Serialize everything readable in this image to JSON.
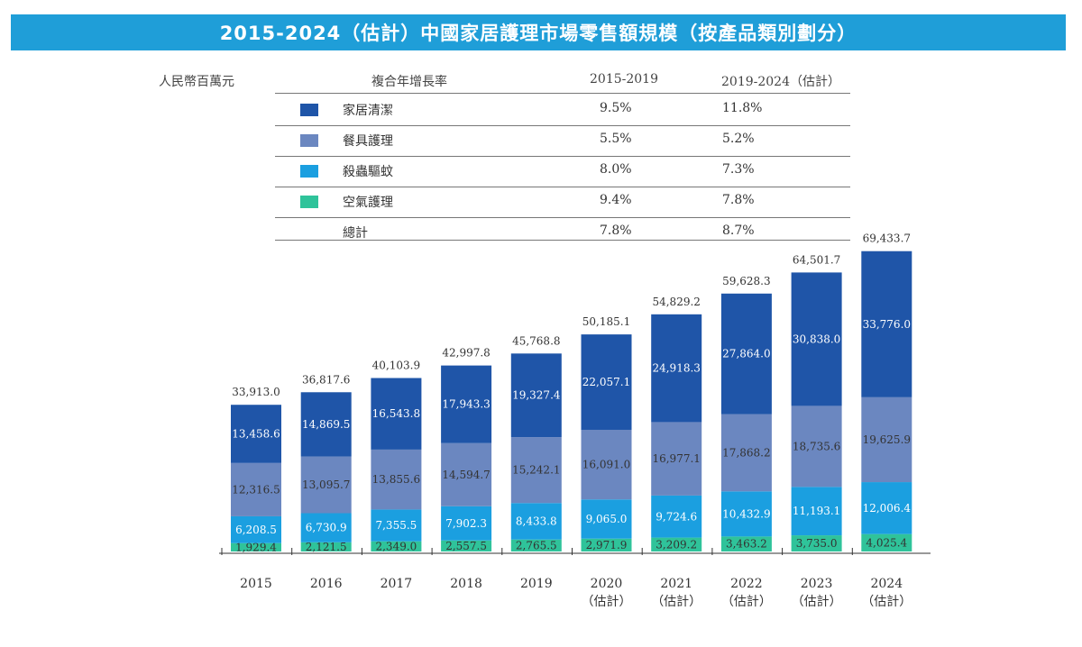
{
  "title": "2015-2024（估計）中國家居護理市場零售額規模（按產品類別劃分）",
  "unit": "人民幣百萬元",
  "cagr_table": {
    "header": [
      "複合年增長率",
      "2015-2019",
      "2019-2024（估計）"
    ],
    "rows": [
      {
        "label": "家居清潔",
        "v1": "9.5%",
        "v2": "11.8%",
        "color": "#1f55a8"
      },
      {
        "label": "餐具護理",
        "v1": "5.5%",
        "v2": "5.2%",
        "color": "#6b87c0"
      },
      {
        "label": "殺蟲驅蚊",
        "v1": "8.0%",
        "v2": "7.3%",
        "color": "#1b9fe0"
      },
      {
        "label": "空氣護理",
        "v1": "9.4%",
        "v2": "7.8%",
        "color": "#2fc39a"
      }
    ],
    "total": {
      "label": "總計",
      "v1": "7.8%",
      "v2": "8.7%"
    }
  },
  "chart_data": {
    "type": "bar",
    "stacked": true,
    "categories": [
      "2015",
      "2016",
      "2017",
      "2018",
      "2019",
      "2020",
      "2021",
      "2022",
      "2023",
      "2024"
    ],
    "category_sublabels": [
      "",
      "",
      "",
      "",
      "",
      "（估計）",
      "（估計）",
      "（估計）",
      "（估計）",
      "（估計）"
    ],
    "series": [
      {
        "name": "空氣護理",
        "color": "#2fc39a",
        "values": [
          1929.4,
          2121.5,
          2349.0,
          2557.5,
          2765.5,
          2971.9,
          3209.2,
          3463.2,
          3735.0,
          4025.4
        ],
        "labels": [
          "1,929.4",
          "2,121.5",
          "2,349.0",
          "2,557.5",
          "2,765.5",
          "2,971.9",
          "3,209.2",
          "3,463.2",
          "3,735.0",
          "4,025.4"
        ]
      },
      {
        "name": "殺蟲驅蚊",
        "color": "#1b9fe0",
        "values": [
          6208.5,
          6730.9,
          7355.5,
          7902.3,
          8433.8,
          9065.0,
          9724.6,
          10432.9,
          11193.1,
          12006.4
        ],
        "labels": [
          "6,208.5",
          "6,730.9",
          "7,355.5",
          "7,902.3",
          "8,433.8",
          "9,065.0",
          "9,724.6",
          "10,432.9",
          "11,193.1",
          "12,006.4"
        ]
      },
      {
        "name": "餐具護理",
        "color": "#6b87c0",
        "values": [
          12316.5,
          13095.7,
          13855.6,
          14594.7,
          15242.1,
          16091.0,
          16977.1,
          17868.2,
          18735.6,
          19625.9
        ],
        "labels": [
          "12,316.5",
          "13,095.7",
          "13,855.6",
          "14,594.7",
          "15,242.1",
          "16,091.0",
          "16,977.1",
          "17,868.2",
          "18,735.6",
          "19,625.9"
        ]
      },
      {
        "name": "家居清潔",
        "color": "#1f55a8",
        "values": [
          13458.6,
          14869.5,
          16543.8,
          17943.3,
          19327.4,
          22057.1,
          24918.3,
          27864.0,
          30838.0,
          33776.0
        ],
        "labels": [
          "13,458.6",
          "14,869.5",
          "16,543.8",
          "17,943.3",
          "19,327.4",
          "22,057.1",
          "24,918.3",
          "27,864.0",
          "30,838.0",
          "33,776.0"
        ]
      }
    ],
    "totals": [
      33913.0,
      36817.6,
      40103.9,
      42997.8,
      45768.8,
      50185.1,
      54829.2,
      59628.3,
      64501.7,
      69433.7
    ],
    "total_labels": [
      "33,913.0",
      "36,817.6",
      "40,103.9",
      "42,997.8",
      "45,768.8",
      "50,185.1",
      "54,829.2",
      "59,628.3",
      "64,501.7",
      "69,433.7"
    ]
  }
}
